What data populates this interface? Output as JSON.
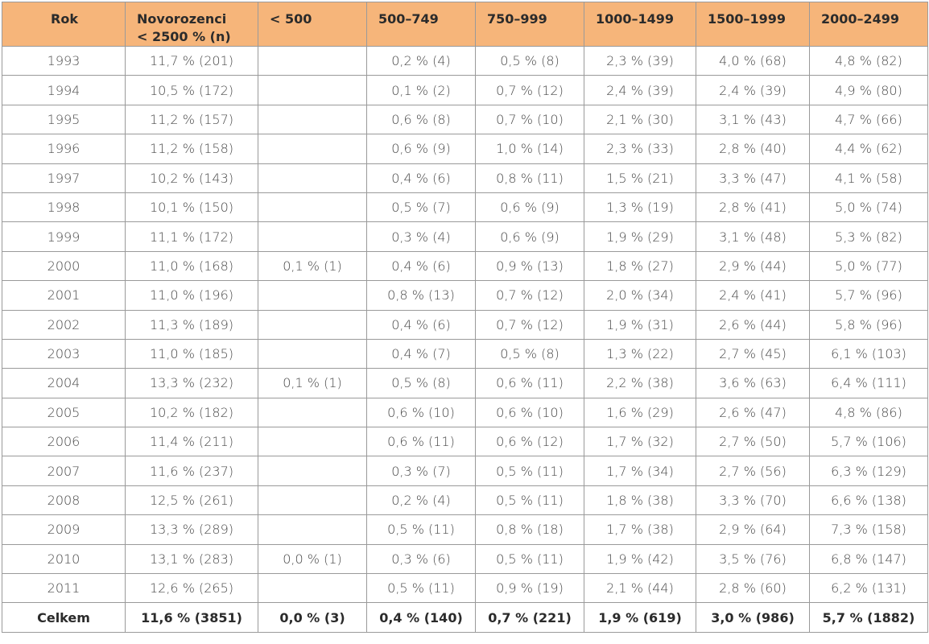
{
  "table": {
    "headers": [
      "Rok",
      "Novorozenci\n< 2500 % (n)",
      "< 500",
      "500–749",
      "750–999",
      "1000–1499",
      "1500–1999",
      "2000–2499"
    ],
    "rows": [
      [
        "1993",
        "11,7 % (201)",
        "",
        "0,2 % (4)",
        "0,5 % (8)",
        "2,3 % (39)",
        "4,0 % (68)",
        "4,8 % (82)"
      ],
      [
        "1994",
        "10,5 % (172)",
        "",
        "0,1 % (2)",
        "0,7 % (12)",
        "2,4 % (39)",
        "2,4 % (39)",
        "4,9 % (80)"
      ],
      [
        "1995",
        "11,2 % (157)",
        "",
        "0,6 % (8)",
        "0,7 % (10)",
        "2,1 % (30)",
        "3,1 % (43)",
        "4,7 % (66)"
      ],
      [
        "1996",
        "11,2 % (158)",
        "",
        "0,6 % (9)",
        "1,0 % (14)",
        "2,3 % (33)",
        "2,8 % (40)",
        "4,4 % (62)"
      ],
      [
        "1997",
        "10,2 % (143)",
        "",
        "0,4 % (6)",
        "0,8 % (11)",
        "1,5 % (21)",
        "3,3 % (47)",
        "4,1 % (58)"
      ],
      [
        "1998",
        "10,1 % (150)",
        "",
        "0,5 % (7)",
        "0,6 % (9)",
        "1,3 % (19)",
        "2,8 % (41)",
        "5,0 % (74)"
      ],
      [
        "1999",
        "11,1 % (172)",
        "",
        "0,3 % (4)",
        "0,6 % (9)",
        "1,9 % (29)",
        "3,1 % (48)",
        "5,3 % (82)"
      ],
      [
        "2000",
        "11,0 % (168)",
        "0,1 % (1)",
        "0,4 % (6)",
        "0,9 % (13)",
        "1,8 % (27)",
        "2,9 % (44)",
        "5,0 % (77)"
      ],
      [
        "2001",
        "11,0 % (196)",
        "",
        "0,8 % (13)",
        "0,7 % (12)",
        "2,0 % (34)",
        "2,4 % (41)",
        "5,7 % (96)"
      ],
      [
        "2002",
        "11,3 % (189)",
        "",
        "0,4 % (6)",
        "0,7 % (12)",
        "1,9 % (31)",
        "2,6 % (44)",
        "5,8 % (96)"
      ],
      [
        "2003",
        "11,0 % (185)",
        "",
        "0,4 % (7)",
        "0,5 % (8)",
        "1,3 % (22)",
        "2,7 % (45)",
        "6,1 % (103)"
      ],
      [
        "2004",
        "13,3 % (232)",
        "0,1 % (1)",
        "0,5 % (8)",
        "0,6 % (11)",
        "2,2 % (38)",
        "3,6 % (63)",
        "6,4 % (111)"
      ],
      [
        "2005",
        "10,2 % (182)",
        "",
        "0,6 % (10)",
        "0,6 % (10)",
        "1,6 % (29)",
        "2,6 % (47)",
        "4,8 % (86)"
      ],
      [
        "2006",
        "11,4 % (211)",
        "",
        "0,6 % (11)",
        "0,6 % (12)",
        "1,7 % (32)",
        "2,7 % (50)",
        "5,7 % (106)"
      ],
      [
        "2007",
        "11,6 % (237)",
        "",
        "0,3 % (7)",
        "0,5 % (11)",
        "1,7 % (34)",
        "2,7 % (56)",
        "6,3 % (129)"
      ],
      [
        "2008",
        "12,5 % (261)",
        "",
        "0,2 % (4)",
        "0,5 % (11)",
        "1,8 % (38)",
        "3,3 % (70)",
        "6,6 % (138)"
      ],
      [
        "2009",
        "13,3 % (289)",
        "",
        "0,5 % (11)",
        "0,8 % (18)",
        "1,7 % (38)",
        "2,9 % (64)",
        "7,3 % (158)"
      ],
      [
        "2010",
        "13,1 % (283)",
        "0,0 % (1)",
        "0,3 % (6)",
        "0,5 % (11)",
        "1,9 % (42)",
        "3,5 % (76)",
        "6,8 % (147)"
      ],
      [
        "2011",
        "12,6 % (265)",
        "",
        "0,5 % (11)",
        "0,9 % (19)",
        "2,1 % (44)",
        "2,8 % (60)",
        "6,2 % (131)"
      ]
    ],
    "total": [
      "Celkem",
      "11,6 % (3851)",
      "0,0 % (3)",
      "0,4 % (140)",
      "0,7 % (221)",
      "1,9 % (619)",
      "3,0 % (986)",
      "5,7 % (1882)"
    ]
  },
  "colors": {
    "header_background": "#f6b57a",
    "border": "#9a9a9a"
  }
}
